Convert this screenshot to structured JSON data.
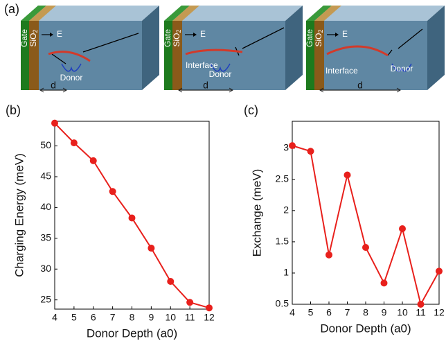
{
  "diagram": {
    "label": "(a)",
    "boxes": [
      {
        "gate": "Gate",
        "oxide": "SiO",
        "oxide_sub": "2",
        "field": "E",
        "donor": "Donor",
        "distance": "d"
      },
      {
        "gate": "Gate",
        "oxide": "SiO",
        "oxide_sub": "2",
        "field": "E",
        "interface": "Interface",
        "donor": "Donor",
        "distance": "d"
      },
      {
        "gate": "Gate",
        "oxide": "SiO",
        "oxide_sub": "2",
        "field": "E",
        "interface": "Interface",
        "donor": "Donor",
        "distance": "d"
      }
    ]
  },
  "chart_data": [
    {
      "type": "line",
      "title": "(b)",
      "x_label": "Donor Depth (a0)",
      "y_label": "Charging Energy (meV)",
      "x": [
        4,
        5,
        6,
        7,
        8,
        9,
        10,
        11,
        12
      ],
      "series": [
        {
          "color": "#e8201c",
          "values": [
            53.7,
            50.5,
            47.6,
            42.6,
            38.3,
            33.4,
            28.0,
            24.6,
            23.7
          ]
        }
      ],
      "xlim": [
        4,
        12
      ],
      "xticks": [
        4,
        5,
        6,
        7,
        8,
        9,
        10,
        11,
        12
      ],
      "ylim": [
        23.5,
        54
      ],
      "yticks": [
        25,
        30,
        35,
        40,
        45,
        50
      ]
    },
    {
      "type": "line",
      "title": "(c)",
      "x_label": "Donor Depth (a0)",
      "y_label": "Exchange (meV)",
      "x": [
        4,
        5,
        6,
        7,
        8,
        9,
        10,
        11,
        12
      ],
      "series": [
        {
          "color": "#e8201c",
          "values": [
            3.04,
            2.95,
            1.29,
            2.57,
            1.41,
            0.84,
            1.71,
            0.5,
            1.03
          ]
        }
      ],
      "xlim": [
        4,
        12
      ],
      "xticks": [
        4,
        5,
        6,
        7,
        8,
        9,
        10,
        11,
        12
      ],
      "ylim": [
        0.5,
        3.43
      ],
      "yticks": [
        0.5,
        1,
        1.5,
        2,
        2.5,
        3
      ]
    }
  ]
}
